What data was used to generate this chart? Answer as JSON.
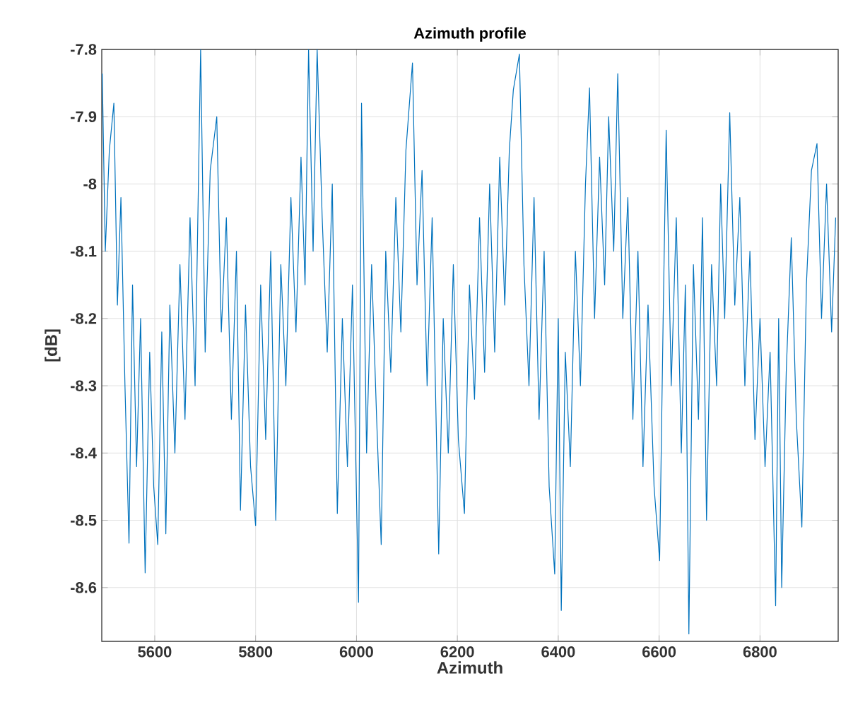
{
  "chart_data": {
    "type": "line",
    "title": "Azimuth profile",
    "xlabel": "Azimuth",
    "ylabel": "[dB]",
    "color": "#0072bd",
    "grid": true,
    "xlim": [
      5495,
      6955
    ],
    "ylim": [
      -8.68,
      -7.8
    ],
    "xticks": [
      5600,
      5800,
      6000,
      6200,
      6400,
      6600,
      6800
    ],
    "yticks": [
      -8.6,
      -8.5,
      -8.4,
      -8.3,
      -8.2,
      -8.1,
      -8,
      -7.9,
      -7.8
    ],
    "x": [
      5496,
      5502,
      5510,
      5519,
      5526,
      5533,
      5541,
      5549,
      5556,
      5564,
      5572,
      5581,
      5590,
      5598,
      5606,
      5614,
      5622,
      5630,
      5640,
      5650,
      5660,
      5670,
      5680,
      5691,
      5700,
      5710,
      5723,
      5732,
      5742,
      5752,
      5762,
      5770,
      5780,
      5790,
      5800,
      5810,
      5820,
      5830,
      5840,
      5850,
      5860,
      5870,
      5880,
      5890,
      5898,
      5905,
      5914,
      5922,
      5932,
      5942,
      5952,
      5962,
      5972,
      5982,
      5992,
      6004,
      6010,
      6020,
      6030,
      6040,
      6049,
      6058,
      6068,
      6078,
      6088,
      6098,
      6111,
      6120,
      6130,
      6140,
      6150,
      6163,
      6172,
      6182,
      6192,
      6202,
      6214,
      6224,
      6234,
      6244,
      6254,
      6264,
      6274,
      6284,
      6294,
      6303,
      6311,
      6323,
      6332,
      6342,
      6352,
      6362,
      6372,
      6382,
      6393,
      6400,
      6406,
      6414,
      6424,
      6434,
      6444,
      6454,
      6462,
      6472,
      6482,
      6492,
      6500,
      6510,
      6518,
      6528,
      6538,
      6548,
      6558,
      6568,
      6578,
      6590,
      6601,
      6608,
      6614,
      6624,
      6634,
      6644,
      6652,
      6659,
      6668,
      6678,
      6686,
      6694,
      6704,
      6714,
      6722,
      6730,
      6740,
      6750,
      6760,
      6770,
      6780,
      6790,
      6800,
      6810,
      6820,
      6831,
      6837,
      6843,
      6852,
      6862,
      6872,
      6883,
      6892,
      6902,
      6913,
      6922,
      6932,
      6942,
      6950
    ],
    "values": [
      -7.836,
      -8.1,
      -7.95,
      -7.88,
      -8.18,
      -8.02,
      -8.3,
      -8.534,
      -8.15,
      -8.42,
      -8.2,
      -8.578,
      -8.25,
      -8.45,
      -8.536,
      -8.22,
      -8.52,
      -8.18,
      -8.4,
      -8.12,
      -8.35,
      -8.05,
      -8.3,
      -7.8,
      -8.25,
      -7.98,
      -7.9,
      -8.22,
      -8.05,
      -8.35,
      -8.1,
      -8.485,
      -8.18,
      -8.42,
      -8.508,
      -8.15,
      -8.38,
      -8.1,
      -8.5,
      -8.12,
      -8.3,
      -8.02,
      -8.22,
      -7.96,
      -8.15,
      -7.8,
      -8.1,
      -7.8,
      -8.05,
      -8.25,
      -8.0,
      -8.49,
      -8.2,
      -8.42,
      -8.15,
      -8.622,
      -7.88,
      -8.4,
      -8.12,
      -8.35,
      -8.536,
      -8.1,
      -8.28,
      -8.02,
      -8.22,
      -7.95,
      -7.82,
      -8.15,
      -7.98,
      -8.3,
      -8.05,
      -8.55,
      -8.2,
      -8.4,
      -8.12,
      -8.38,
      -8.49,
      -8.15,
      -8.32,
      -8.05,
      -8.28,
      -8.0,
      -8.25,
      -7.96,
      -8.18,
      -7.95,
      -7.86,
      -7.807,
      -8.12,
      -8.3,
      -8.02,
      -8.35,
      -8.1,
      -8.45,
      -8.58,
      -8.2,
      -8.634,
      -8.25,
      -8.42,
      -8.1,
      -8.3,
      -8.0,
      -7.857,
      -8.2,
      -7.96,
      -8.15,
      -7.9,
      -8.1,
      -7.836,
      -8.2,
      -8.02,
      -8.35,
      -8.1,
      -8.42,
      -8.18,
      -8.45,
      -8.56,
      -8.2,
      -7.92,
      -8.3,
      -8.05,
      -8.4,
      -8.15,
      -8.669,
      -8.12,
      -8.35,
      -8.05,
      -8.5,
      -8.12,
      -8.3,
      -8.0,
      -8.2,
      -7.894,
      -8.18,
      -8.02,
      -8.3,
      -8.1,
      -8.38,
      -8.2,
      -8.42,
      -8.25,
      -8.627,
      -8.2,
      -8.6,
      -8.28,
      -8.08,
      -8.35,
      -8.51,
      -8.15,
      -7.98,
      -7.94,
      -8.2,
      -8.0,
      -8.22,
      -8.05
    ]
  }
}
